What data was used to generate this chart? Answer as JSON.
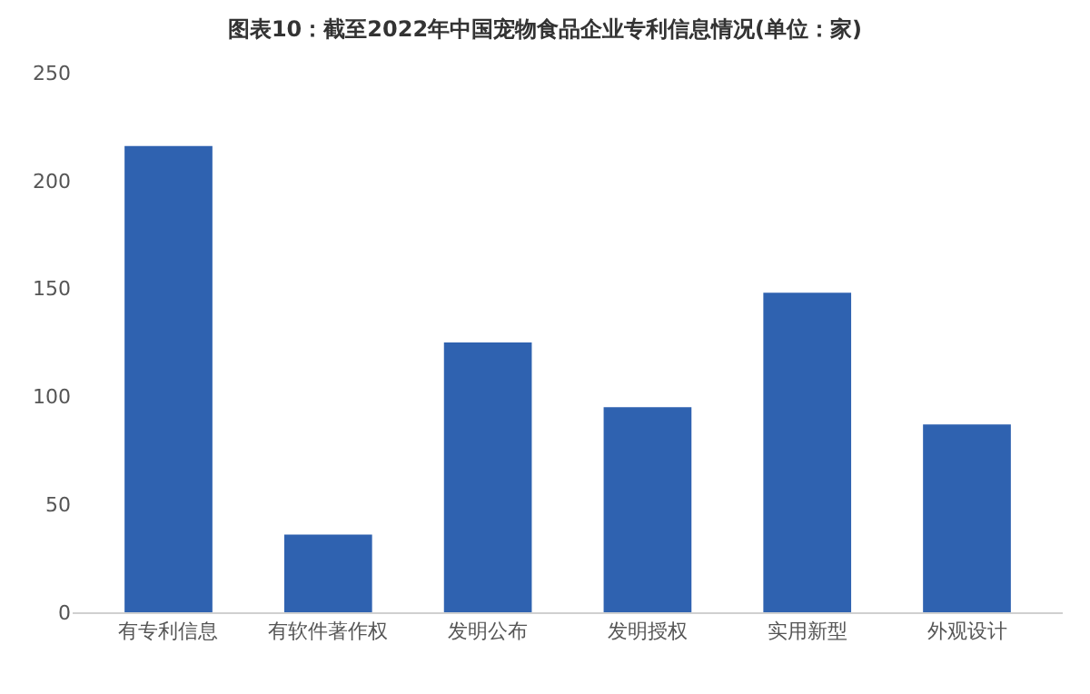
{
  "chart_data": {
    "type": "bar",
    "title": "图表10：截至2022年中国宠物食品企业专利信息情况(单位：家)",
    "categories": [
      "有专利信息",
      "有软件著作权",
      "发明公布",
      "发明授权",
      "实用新型",
      "外观设计"
    ],
    "values": [
      216,
      36,
      125,
      95,
      148,
      87
    ],
    "color": "#2f62b0",
    "ylim": [
      0,
      250
    ],
    "yticks": [
      0,
      50,
      100,
      150,
      200,
      250
    ],
    "grid": false
  }
}
